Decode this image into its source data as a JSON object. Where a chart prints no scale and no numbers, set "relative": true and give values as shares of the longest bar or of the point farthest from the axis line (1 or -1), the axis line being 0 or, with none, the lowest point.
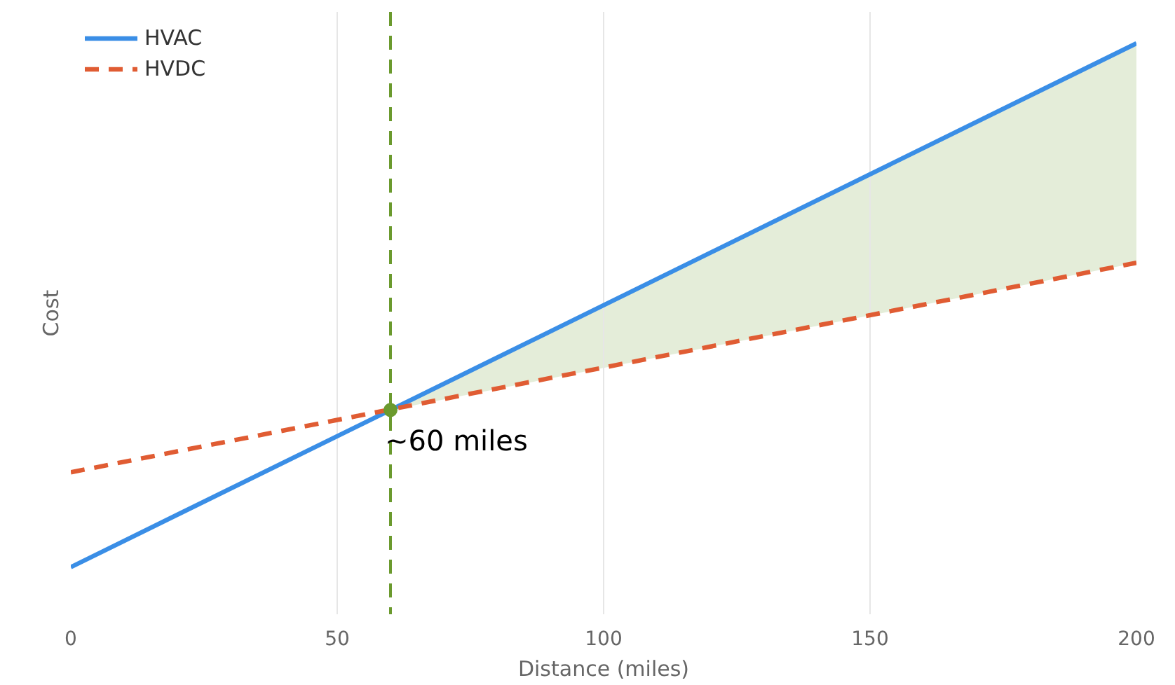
{
  "chart_data": {
    "type": "line",
    "xlabel": "Distance (miles)",
    "ylabel": "Cost",
    "relative": true,
    "xlim": [
      0,
      200
    ],
    "xticks": [
      0,
      50,
      100,
      150,
      200
    ],
    "grid": "x",
    "legend": "top left",
    "series": [
      {
        "name": "HVAC",
        "x": [
          0,
          60,
          200
        ],
        "values": [
          0,
          0.3,
          1
        ],
        "lower": [
          null,
          0.3,
          0.581
        ],
        "upper": [
          null,
          0.3,
          1
        ],
        "color": "#3a8ee6",
        "line_style": "solid"
      },
      {
        "name": "HVDC",
        "x": [
          0,
          200
        ],
        "values": [
          0.181,
          0.581
        ],
        "color": "#e05c33",
        "line_style": "dashed"
      },
      {
        "type": "scatter",
        "x": [
          60
        ],
        "values": [
          0.3
        ],
        "color": "#6b9a2e",
        "marker": "circle"
      }
    ],
    "ref_lines": [
      {
        "axis": "x",
        "value": 60,
        "color": "#6b9a2e",
        "line_style": "dashed"
      }
    ],
    "annotations": [
      {
        "text": "~60 miles",
        "x": 60,
        "y": 0.3
      }
    ]
  }
}
